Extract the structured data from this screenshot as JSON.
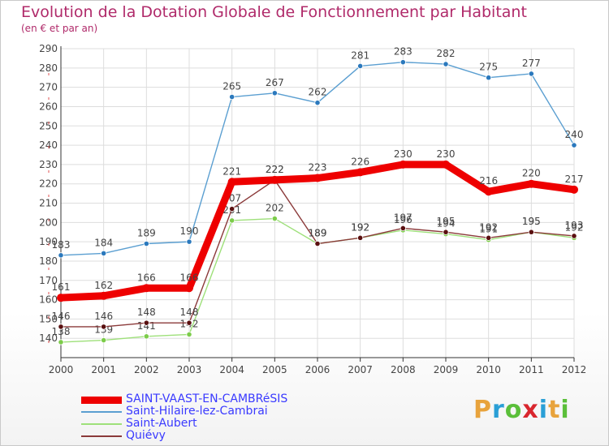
{
  "title": "Evolution de la Dotation Globale de Fonctionnement par Habitant",
  "subtitle": "(en € et par an)",
  "brand": {
    "letters": [
      "P",
      "r",
      "o",
      "x",
      "i",
      "t",
      "i"
    ],
    "colors": [
      "#e8a33c",
      "#2a9fd6",
      "#5bbf3a",
      "#d9262e",
      "#2a9fd6",
      "#e8a33c",
      "#5bbf3a"
    ]
  },
  "chart_data": {
    "type": "line",
    "title": "Evolution de la Dotation Globale de Fonctionnement par Habitant",
    "subtitle": "(en € et par an)",
    "xlabel": "",
    "ylabel": "",
    "categories": [
      "2000",
      "2001",
      "2002",
      "2003",
      "2004",
      "2005",
      "2006",
      "2007",
      "2008",
      "2009",
      "2010",
      "2011",
      "2012"
    ],
    "ylim": [
      130,
      290
    ],
    "yticks": [
      140,
      150,
      160,
      170,
      180,
      190,
      200,
      210,
      220,
      230,
      240,
      250,
      260,
      270,
      280,
      290
    ],
    "grid": true,
    "legend_position": "bottom-left",
    "series": [
      {
        "name": "Saint-Hilaire-lez-Cambrai",
        "color": "#5b9fd1",
        "marker_color": "#2b79bd",
        "weight": "thin",
        "values": [
          183,
          184,
          189,
          190,
          265,
          267,
          262,
          281,
          283,
          282,
          275,
          277,
          240
        ]
      },
      {
        "name": "Saint-Aubert",
        "color": "#9ee07a",
        "marker_color": "#7ccc4a",
        "weight": "thin",
        "values": [
          138,
          139,
          141,
          142,
          201,
          202,
          189,
          192,
          196,
          194,
          191,
          195,
          192
        ]
      },
      {
        "name": "Quiévy",
        "color": "#8b3a3a",
        "marker_color": "#5a1010",
        "weight": "thin",
        "values": [
          146,
          146,
          148,
          148,
          207,
          222,
          189,
          192,
          197,
          195,
          192,
          195,
          193
        ]
      },
      {
        "name": "SAINT-VAAST-EN-CAMBRéSIS",
        "color": "#ee0000",
        "marker_color": "#ee0000",
        "weight": "bold",
        "values": [
          161,
          162,
          166,
          166,
          221,
          222,
          223,
          226,
          230,
          230,
          216,
          220,
          217
        ]
      }
    ],
    "legend_order": [
      "SAINT-VAAST-EN-CAMBRéSIS",
      "Saint-Hilaire-lez-Cambrai",
      "Saint-Aubert",
      "Quiévy"
    ]
  }
}
